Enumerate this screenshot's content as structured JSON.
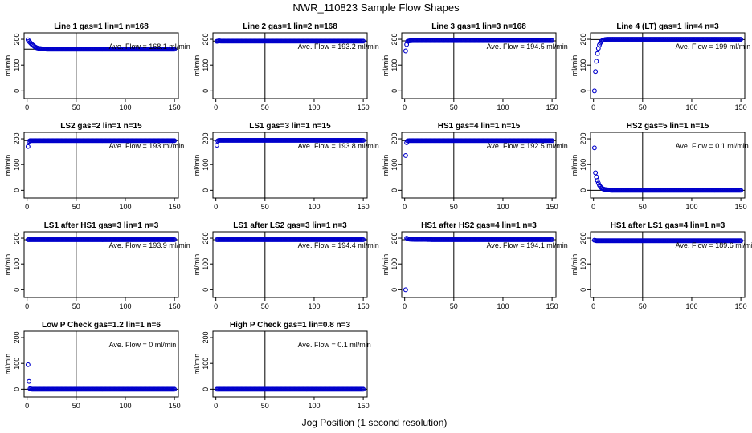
{
  "figure": {
    "title": "NWR_110823  Sample Flow Shapes",
    "xlabel": "Jog Position (1 second resolution)",
    "ylabel": "ml/min",
    "xticks": [
      0,
      50,
      100,
      150
    ],
    "yticks": [
      0,
      100,
      200
    ],
    "xlim": [
      -3,
      154
    ],
    "ylim": [
      -30,
      225
    ],
    "point_color": "#0000cc",
    "ref_line_x": 50
  },
  "chart_data": [
    {
      "type": "scatter",
      "title": "Line 1 gas=1 lin=1 n=168",
      "annotation": "Ave. Flow = 168.1  ml/min",
      "hline": 162,
      "x": [
        1,
        2,
        3,
        4,
        5,
        6,
        7,
        8,
        9,
        10,
        12,
        14,
        16,
        18,
        20,
        25,
        30,
        40,
        50,
        60,
        70,
        80,
        90,
        100,
        110,
        120,
        130,
        140,
        150
      ],
      "y": [
        198,
        192,
        188,
        184,
        180,
        177,
        174,
        171,
        169,
        167,
        165,
        164,
        163,
        163,
        162,
        162,
        162,
        162,
        162,
        162,
        162,
        162,
        162,
        162,
        162,
        162,
        162,
        162,
        162
      ]
    },
    {
      "type": "scatter",
      "title": "Line 2 gas=1 lin=2 n=168",
      "annotation": "Ave. Flow = 193.2  ml/min",
      "hline": 193,
      "x": [
        1,
        3,
        5,
        10,
        15,
        20,
        30,
        40,
        50,
        60,
        70,
        80,
        90,
        100,
        110,
        120,
        130,
        140,
        150
      ],
      "y": [
        192,
        194,
        193,
        193,
        193,
        193,
        193,
        193,
        193,
        193,
        193,
        193,
        193,
        193,
        193,
        193,
        193,
        193,
        193
      ]
    },
    {
      "type": "scatter",
      "title": "Line 3 gas=1 lin=3 n=168",
      "annotation": "Ave. Flow = 194.5  ml/min",
      "hline": 194,
      "x": [
        1,
        2,
        3,
        5,
        8,
        10,
        15,
        20,
        30,
        40,
        50,
        60,
        70,
        80,
        90,
        100,
        110,
        120,
        130,
        140,
        150
      ],
      "y": [
        155,
        180,
        192,
        194,
        195,
        195,
        195,
        195,
        195,
        195,
        195,
        195,
        195,
        195,
        195,
        195,
        195,
        195,
        195,
        195,
        195
      ]
    },
    {
      "type": "scatter",
      "title": "Line 4 (LT) gas=1 lin=4 n=3",
      "annotation": "Ave. Flow = 199  ml/min",
      "hline": 199,
      "x": [
        1,
        2,
        3,
        4,
        5,
        6,
        7,
        8,
        9,
        10,
        12,
        14,
        16,
        20,
        25,
        30,
        40,
        50,
        60,
        70,
        80,
        90,
        100,
        110,
        120,
        130,
        140,
        150
      ],
      "y": [
        0,
        75,
        115,
        145,
        165,
        178,
        186,
        192,
        195,
        197,
        199,
        200,
        200,
        200,
        200,
        200,
        200,
        200,
        200,
        200,
        200,
        200,
        200,
        200,
        200,
        200,
        200,
        200
      ]
    },
    {
      "type": "scatter",
      "title": "LS2 gas=2 lin=1 n=15",
      "annotation": "Ave. Flow = 193  ml/min",
      "hline": 193,
      "x": [
        1,
        2,
        3,
        5,
        10,
        15,
        20,
        30,
        40,
        50,
        60,
        70,
        80,
        90,
        100,
        110,
        120,
        130,
        140,
        150
      ],
      "y": [
        170,
        190,
        193,
        193,
        193,
        193,
        193,
        193,
        193,
        193,
        193,
        193,
        193,
        193,
        193,
        193,
        193,
        193,
        193,
        193
      ]
    },
    {
      "type": "scatter",
      "title": "LS1 gas=3 lin=1 n=15",
      "annotation": "Ave. Flow = 193.8  ml/min",
      "hline": 194,
      "x": [
        1,
        2,
        3,
        5,
        10,
        15,
        20,
        30,
        40,
        50,
        60,
        70,
        80,
        90,
        100,
        110,
        120,
        130,
        140,
        150
      ],
      "y": [
        175,
        192,
        194,
        194,
        194,
        194,
        194,
        194,
        194,
        194,
        194,
        194,
        194,
        194,
        194,
        194,
        194,
        194,
        194,
        194
      ]
    },
    {
      "type": "scatter",
      "title": "HS1 gas=4 lin=1 n=15",
      "annotation": "Ave. Flow = 192.5  ml/min",
      "hline": 193,
      "x": [
        1,
        2,
        3,
        5,
        10,
        15,
        20,
        30,
        40,
        50,
        60,
        70,
        80,
        90,
        100,
        110,
        120,
        130,
        140,
        150
      ],
      "y": [
        135,
        185,
        192,
        193,
        193,
        193,
        193,
        193,
        193,
        193,
        193,
        193,
        193,
        193,
        193,
        193,
        193,
        193,
        193,
        193
      ]
    },
    {
      "type": "scatter",
      "title": "HS2 gas=5 lin=1 n=15",
      "annotation": "Ave. Flow = 0.1  ml/min",
      "hline": 0,
      "x": [
        1,
        2,
        3,
        4,
        5,
        6,
        7,
        8,
        9,
        10,
        12,
        14,
        16,
        18,
        20,
        25,
        30,
        40,
        50,
        60,
        70,
        80,
        90,
        100,
        110,
        120,
        130,
        140,
        150
      ],
      "y": [
        165,
        68,
        52,
        38,
        28,
        20,
        14,
        10,
        7,
        5,
        3,
        2,
        1,
        0,
        0,
        0,
        0,
        0,
        0,
        0,
        0,
        0,
        0,
        0,
        0,
        0,
        0,
        0,
        0
      ]
    },
    {
      "type": "scatter",
      "title": "LS1 after HS1 gas=3 lin=1 n=3",
      "annotation": "Ave. Flow = 193.9  ml/min",
      "hline": 194,
      "x": [
        1,
        3,
        5,
        10,
        15,
        20,
        30,
        40,
        50,
        60,
        70,
        80,
        90,
        100,
        110,
        120,
        130,
        140,
        150
      ],
      "y": [
        194,
        194,
        194,
        194,
        194,
        194,
        194,
        194,
        194,
        194,
        194,
        194,
        194,
        194,
        194,
        194,
        194,
        194,
        194
      ]
    },
    {
      "type": "scatter",
      "title": "LS1 after LS2 gas=3 lin=1 n=3",
      "annotation": "Ave. Flow = 194.4  ml/min",
      "hline": 194,
      "x": [
        1,
        3,
        5,
        10,
        15,
        20,
        30,
        40,
        50,
        60,
        70,
        80,
        90,
        100,
        110,
        120,
        130,
        140,
        150
      ],
      "y": [
        194,
        194,
        194,
        194,
        194,
        194,
        194,
        194,
        194,
        194,
        194,
        194,
        194,
        194,
        194,
        194,
        194,
        194,
        194
      ]
    },
    {
      "type": "scatter",
      "title": "HS1 after HS2 gas=4 lin=1 n=3",
      "annotation": "Ave. Flow = 194.1  ml/min",
      "hline": 194,
      "x": [
        1,
        2,
        3,
        5,
        10,
        15,
        20,
        30,
        40,
        50,
        60,
        70,
        80,
        90,
        100,
        110,
        120,
        130,
        140,
        150
      ],
      "y": [
        0,
        200,
        198,
        196,
        195,
        195,
        195,
        194,
        194,
        194,
        194,
        194,
        194,
        194,
        194,
        194,
        194,
        194,
        194,
        194
      ]
    },
    {
      "type": "scatter",
      "title": "HS1 after LS1 gas=4 lin=1 n=3",
      "annotation": "Ave. Flow = 189.6  ml/min",
      "hline": 190,
      "x": [
        1,
        3,
        5,
        10,
        15,
        20,
        30,
        40,
        50,
        60,
        70,
        80,
        90,
        100,
        110,
        120,
        130,
        140,
        150
      ],
      "y": [
        192,
        190,
        190,
        190,
        190,
        190,
        190,
        190,
        190,
        190,
        190,
        190,
        190,
        190,
        190,
        190,
        190,
        190,
        190
      ]
    },
    {
      "type": "scatter",
      "title": "Low P Check gas=1.2 lin=1 n=6",
      "annotation": "Ave. Flow = 0  ml/min",
      "hline": 0,
      "x": [
        1,
        2,
        3,
        5,
        10,
        15,
        20,
        30,
        40,
        50,
        60,
        70,
        80,
        90,
        100,
        110,
        120,
        130,
        140,
        150
      ],
      "y": [
        95,
        30,
        2,
        0,
        0,
        0,
        0,
        0,
        0,
        0,
        0,
        0,
        0,
        0,
        0,
        0,
        0,
        0,
        0,
        0
      ]
    },
    {
      "type": "scatter",
      "title": "High P Check gas=1 lin=0.8 n=3",
      "annotation": "Ave. Flow = 0.1  ml/min",
      "hline": 0,
      "x": [
        1,
        3,
        5,
        10,
        15,
        20,
        30,
        40,
        50,
        60,
        70,
        80,
        90,
        100,
        110,
        120,
        130,
        140,
        150
      ],
      "y": [
        0,
        0,
        0,
        0,
        0,
        0,
        0,
        0,
        0,
        0,
        0,
        0,
        0,
        0,
        0,
        0,
        0,
        0,
        0
      ]
    }
  ]
}
